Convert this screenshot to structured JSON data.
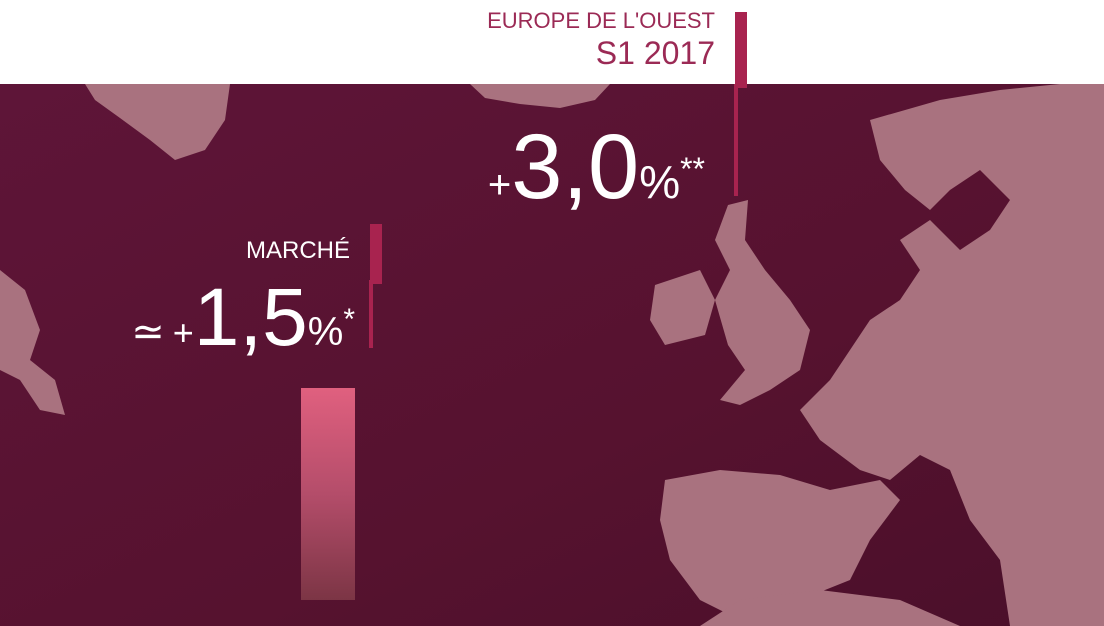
{
  "header": {
    "title": "EUROPE DE L'OUEST",
    "period": "S1 2017"
  },
  "europe_stat": {
    "sign": "+",
    "number": "3,0",
    "unit": "%",
    "note": "**"
  },
  "market_stat": {
    "label": "MARCHÉ",
    "approx": "≃",
    "sign": "+",
    "number": "1,5",
    "unit": "%",
    "note": "*"
  }
}
